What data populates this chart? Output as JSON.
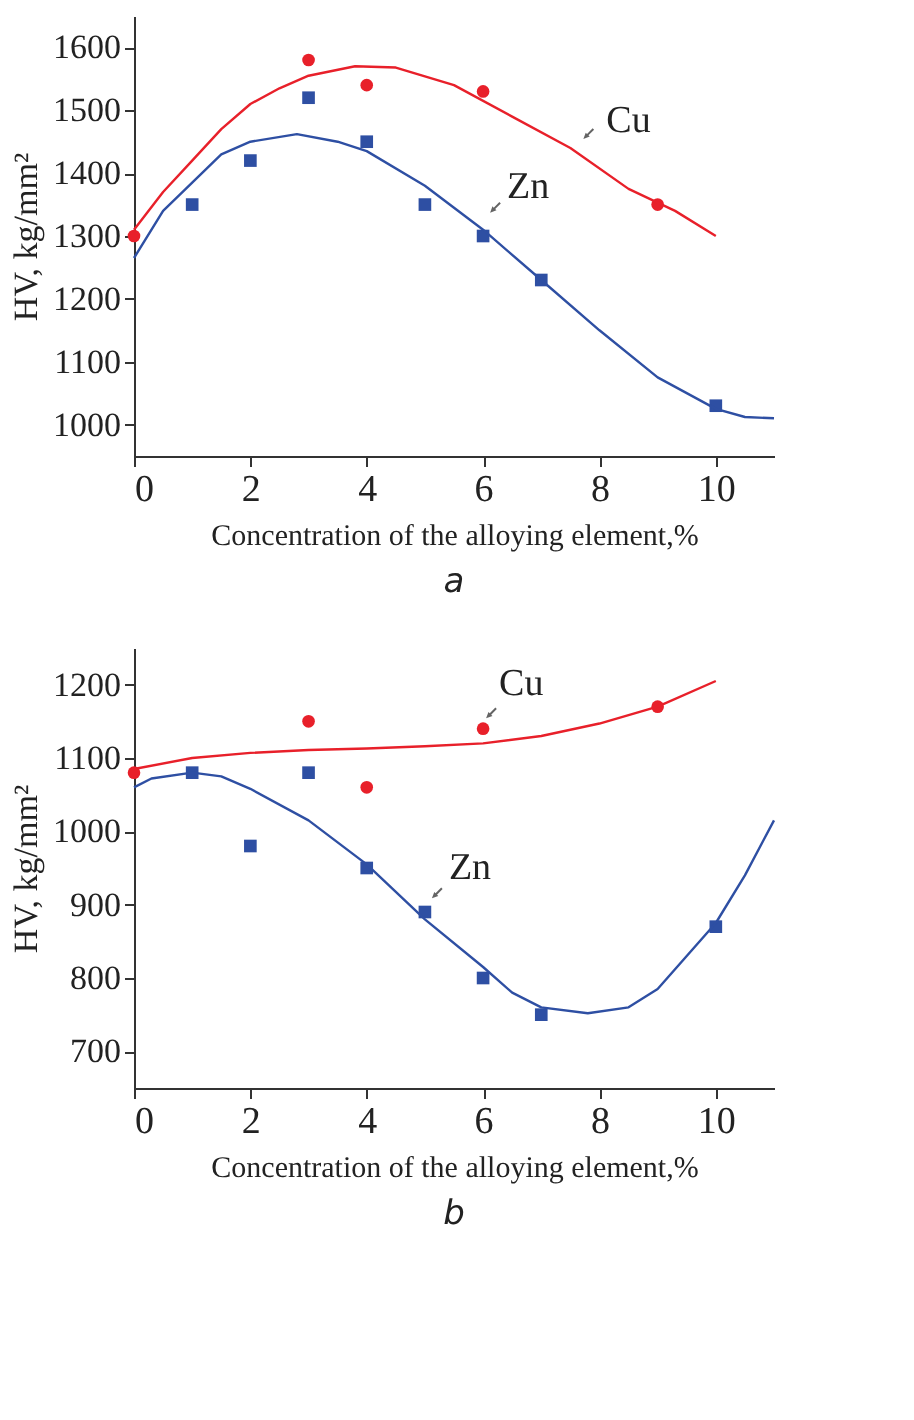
{
  "chart_data": [
    {
      "type": "scatter",
      "title": "a",
      "xlabel": "Concentration of the alloying element,%",
      "ylabel": "HV, kg/mm²",
      "xlim": [
        0,
        11
      ],
      "xticks": [
        0,
        2,
        4,
        6,
        8,
        10
      ],
      "ylim": [
        950,
        1650
      ],
      "yticks": [
        1000,
        1100,
        1200,
        1300,
        1400,
        1500,
        1600
      ],
      "series": [
        {
          "marker": "circle",
          "color": "#e8202a",
          "x": [
            0,
            3,
            4,
            6,
            9
          ],
          "values": [
            1300,
            1580,
            1540,
            1530,
            1350
          ]
        },
        {
          "marker": "square",
          "color": "#2e4fa3",
          "x": [
            1,
            2,
            3,
            4,
            5,
            6,
            7,
            10
          ],
          "values": [
            1350,
            1420,
            1520,
            1450,
            1350,
            1300,
            1230,
            1030
          ]
        },
        {
          "type": "line",
          "name": "Cu",
          "color": "#e8202a",
          "line_style": "solid",
          "marker": "none",
          "x": [
            0,
            0.5,
            1,
            1.5,
            2,
            2.5,
            3,
            3.8,
            4.5,
            5.5,
            6.5,
            7.5,
            8.5,
            9.3,
            10
          ],
          "values": [
            1310,
            1370,
            1420,
            1470,
            1510,
            1535,
            1555,
            1570,
            1568,
            1540,
            1490,
            1440,
            1375,
            1340,
            1300
          ]
        },
        {
          "type": "line",
          "name": "Zn",
          "color": "#2e4fa3",
          "line_style": "solid",
          "marker": "none",
          "x": [
            0,
            0.5,
            1,
            1.5,
            2,
            2.8,
            3.5,
            4,
            5,
            6,
            7,
            8,
            9,
            10,
            10.5,
            11
          ],
          "values": [
            1265,
            1340,
            1385,
            1430,
            1450,
            1462,
            1450,
            1435,
            1380,
            1310,
            1230,
            1150,
            1075,
            1025,
            1012,
            1010
          ]
        }
      ]
    },
    {
      "type": "scatter",
      "title": "b",
      "xlabel": "Concentration of the alloying element,%",
      "ylabel": "HV, kg/mm²",
      "xlim": [
        0,
        11
      ],
      "xticks": [
        0,
        2,
        4,
        6,
        8,
        10
      ],
      "ylim": [
        650,
        1250
      ],
      "yticks": [
        700,
        800,
        900,
        1000,
        1100,
        1200
      ],
      "series": [
        {
          "marker": "circle",
          "color": "#e8202a",
          "x": [
            0,
            3,
            4,
            6,
            9
          ],
          "values": [
            1080,
            1150,
            1060,
            1140,
            1170
          ]
        },
        {
          "marker": "square",
          "color": "#2e4fa3",
          "x": [
            1,
            2,
            3,
            4,
            5,
            6,
            7,
            10
          ],
          "values": [
            1080,
            980,
            1080,
            950,
            890,
            800,
            750,
            870
          ]
        },
        {
          "type": "line",
          "name": "Cu",
          "color": "#e8202a",
          "line_style": "solid",
          "marker": "none",
          "x": [
            0,
            1,
            2,
            3,
            4,
            5,
            6,
            7,
            8,
            9,
            10
          ],
          "values": [
            1085,
            1100,
            1107,
            1111,
            1113,
            1116,
            1120,
            1130,
            1147,
            1170,
            1205
          ]
        },
        {
          "type": "line",
          "name": "Zn",
          "color": "#2e4fa3",
          "line_style": "solid",
          "marker": "none",
          "x": [
            0,
            0.3,
            1,
            1.5,
            2,
            3,
            4,
            5,
            6,
            6.5,
            7,
            7.8,
            8.5,
            9,
            9.5,
            10,
            10.5,
            11
          ],
          "values": [
            1060,
            1072,
            1080,
            1075,
            1058,
            1015,
            955,
            880,
            815,
            780,
            760,
            752,
            760,
            785,
            830,
            875,
            940,
            1015
          ]
        }
      ]
    }
  ]
}
